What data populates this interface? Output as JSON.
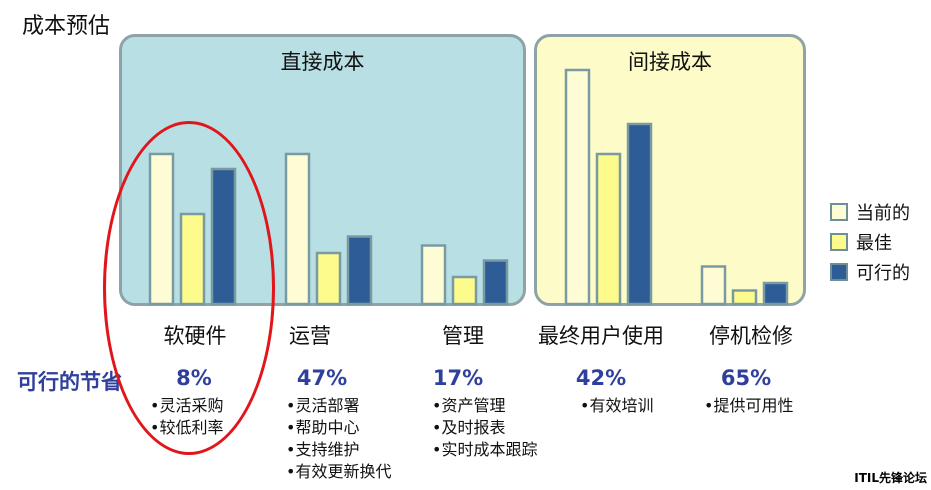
{
  "title": "成本预估",
  "panels": {
    "direct": "直接成本",
    "indirect": "间接成本"
  },
  "savings_label": "可行的节省",
  "legend": {
    "current": "当前的",
    "best": "最佳",
    "feasible": "可行的"
  },
  "colors": {
    "current": "#fefcd4",
    "best": "#fdfb8c",
    "feasible": "#2d5c96",
    "bar_border": "#7a9aa3",
    "direct_panel": "#b8e0e4",
    "indirect_panel": "#fdfcc8",
    "accent": "#2f3f9c",
    "highlight_ellipse": "#e0161b"
  },
  "categories": [
    {
      "name": "软硬件",
      "pct": "8%",
      "bullets": [
        "•灵活采购",
        "•较低利率"
      ]
    },
    {
      "name": "运营",
      "pct": "47%",
      "bullets": [
        "•灵活部署",
        "•帮助中心",
        "•支持维护",
        "•有效更新换代"
      ]
    },
    {
      "name": "管理",
      "pct": "17%",
      "bullets": [
        "•资产管理",
        "•及时报表",
        "•实时成本跟踪"
      ]
    },
    {
      "name": "最终用户使用",
      "pct": "42%",
      "bullets": [
        "•有效培训"
      ]
    },
    {
      "name": "停机检修",
      "pct": "65%",
      "bullets": [
        "•提供可用性"
      ]
    }
  ],
  "chart_data": {
    "type": "bar",
    "categories": [
      "软硬件",
      "运营",
      "管理",
      "最终用户使用",
      "停机检修"
    ],
    "series": [
      {
        "name": "当前的",
        "values": [
          100,
          100,
          39,
          156,
          25
        ]
      },
      {
        "name": "最佳",
        "values": [
          60,
          34,
          18,
          100,
          9
        ]
      },
      {
        "name": "可行的",
        "values": [
          90,
          45,
          29,
          120,
          14
        ]
      }
    ],
    "grid": false,
    "legend_position": "right"
  },
  "watermark": "ITIL先锋论坛"
}
